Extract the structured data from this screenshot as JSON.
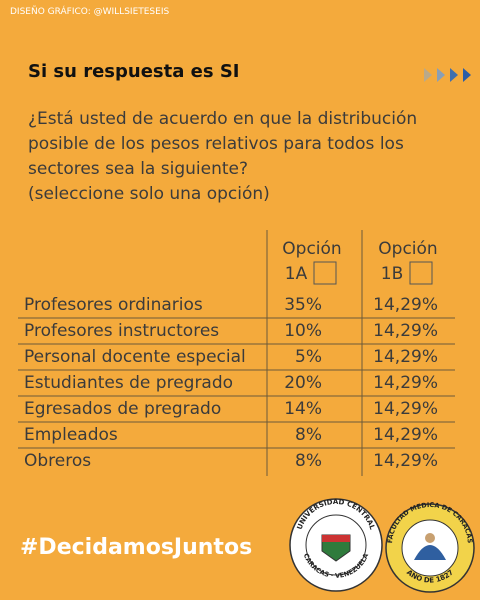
{
  "header": {
    "credit": "DISEÑO GRÁFICO: @WILLSIETESEIS"
  },
  "title": "Si su respuesta es SI",
  "question": [
    "¿Está usted de acuerdo en que la distribución",
    "posible de los pesos relativos para todos los",
    "sectores sea la siguiente?",
    "(seleccione solo una opción)"
  ],
  "table": {
    "columns": [
      {
        "label": "Opción",
        "sub": "1A"
      },
      {
        "label": "Opción",
        "sub": "1B"
      }
    ],
    "rows": [
      [
        "Profesores ordinarios",
        "35%",
        "14,29%"
      ],
      [
        "Profesores instructores",
        "10%",
        "14,29%"
      ],
      [
        "Personal docente especial",
        "5%",
        "14,29%"
      ],
      [
        "Estudiantes de pregrado",
        "20%",
        "14,29%"
      ],
      [
        "Egresados de pregrado",
        "14%",
        "14,29%"
      ],
      [
        "Empleados",
        "8%",
        "14,29%"
      ],
      [
        "Obreros",
        "8%",
        "14,29%"
      ]
    ]
  },
  "hashtag": "#DecidamosJuntos",
  "logos": [
    {
      "top": "UNIVERSIDAD CENTRAL",
      "bottom": "CARACAS · VENEZUELA"
    },
    {
      "top": "FACULTAD MEDICA DE CARACAS",
      "bottom": "AÑO DE 1827"
    }
  ]
}
